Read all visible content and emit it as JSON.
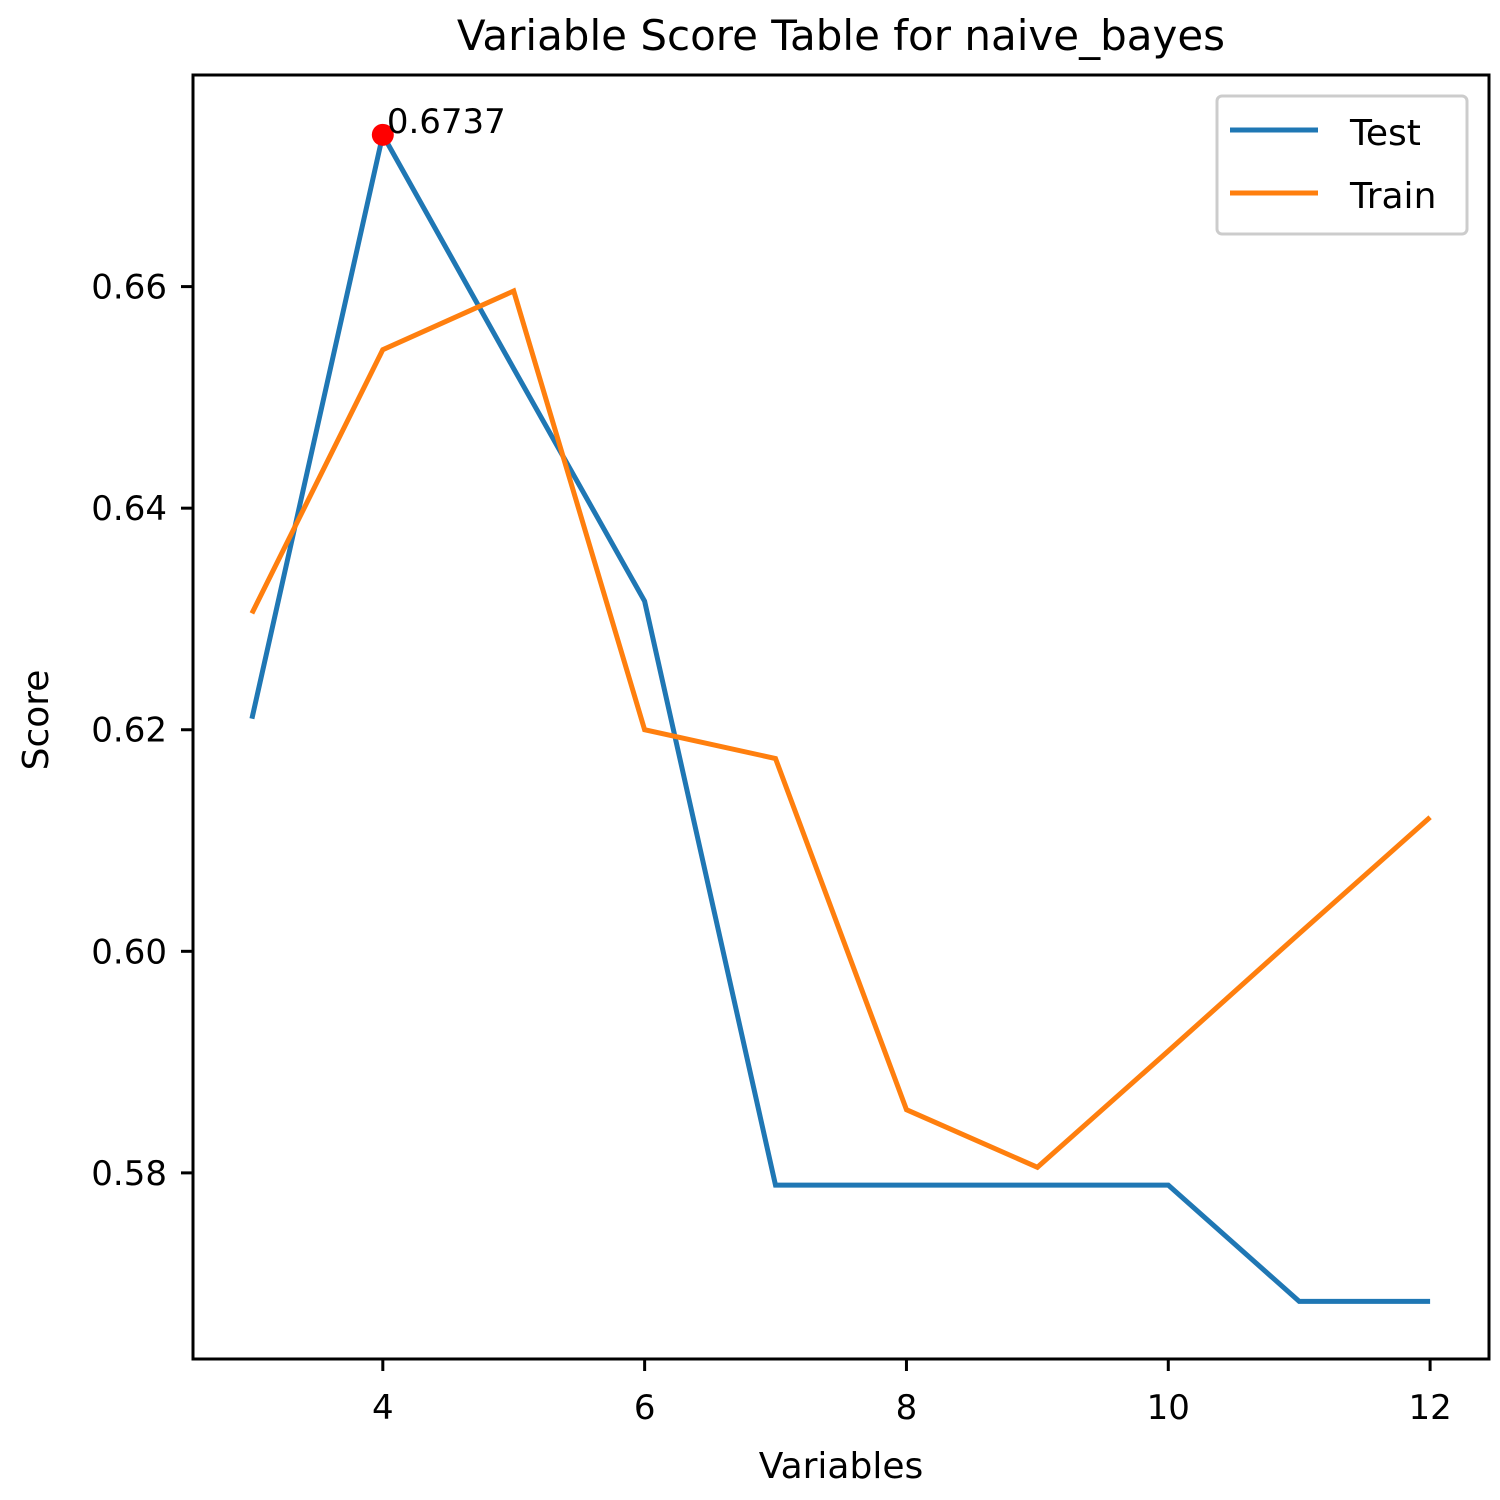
{
  "chart_data": {
    "type": "line",
    "title": "Variable Score Table for naive_bayes",
    "xlabel": "Variables",
    "ylabel": "Score",
    "x": [
      3,
      4,
      5,
      6,
      7,
      8,
      9,
      10,
      11,
      12
    ],
    "xlim": [
      2.55,
      12.45
    ],
    "ylim": [
      0.5632,
      0.6791
    ],
    "x_ticks": [
      4,
      6,
      8,
      10,
      12
    ],
    "y_ticks": [
      0.58,
      0.6,
      0.62,
      0.64,
      0.66
    ],
    "series": [
      {
        "name": "Test",
        "color": "#1f77b4",
        "values": [
          0.621,
          0.6737,
          0.6526,
          0.6316,
          0.5789,
          0.5789,
          0.5789,
          0.5789,
          0.5684,
          0.5684
        ]
      },
      {
        "name": "Train",
        "color": "#ff7f0e",
        "values": [
          0.6305,
          0.6543,
          0.6596,
          0.62,
          0.6174,
          0.5857,
          0.5805,
          0.591,
          0.6016,
          0.6121
        ]
      }
    ],
    "highlight": {
      "x": 4,
      "y": 0.6737,
      "label": "0.6737",
      "color": "#ff0000"
    },
    "legend_position": "top-right",
    "grid": false
  }
}
